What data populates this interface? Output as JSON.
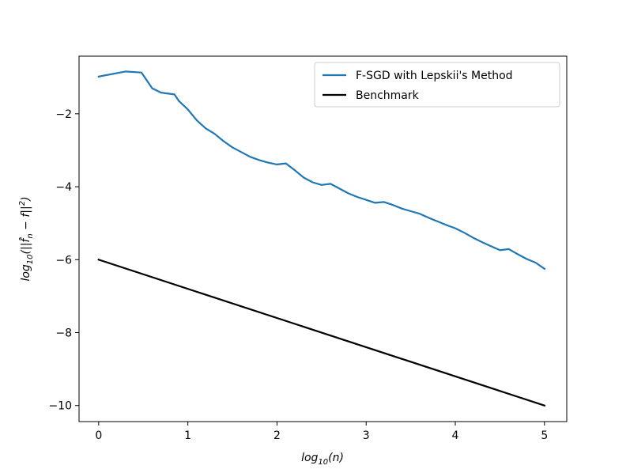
{
  "chart_data": {
    "type": "line",
    "xlabel_base": "log",
    "xlabel_sub": "10",
    "xlabel_arg": "(n)",
    "ylabel_base": "log",
    "ylabel_sub": "10",
    "ylabel_arg": "(||f̂",
    "ylabel_sub2": "n",
    "ylabel_rest": " − f||",
    "ylabel_sup": "2",
    "ylabel_end": ")",
    "xlim": [
      -0.22,
      5.25
    ],
    "ylim": [
      -10.44,
      -0.42
    ],
    "x_ticks": [
      0,
      1,
      2,
      3,
      4,
      5
    ],
    "x_tick_labels": [
      "0",
      "1",
      "2",
      "3",
      "4",
      "5"
    ],
    "y_ticks": [
      -10,
      -8,
      -6,
      -4,
      -2
    ],
    "y_tick_labels": [
      "−10",
      "−8",
      "−6",
      "−4",
      "−2"
    ],
    "grid": false,
    "legend_position": "top-right",
    "series": [
      {
        "name": "F-SGD with Lepskii's Method",
        "color": "#1f77b4",
        "x": [
          0,
          0.3,
          0.48,
          0.6,
          0.7,
          0.85,
          0.9,
          1.0,
          1.1,
          1.2,
          1.3,
          1.4,
          1.5,
          1.6,
          1.7,
          1.8,
          1.9,
          2.0,
          2.1,
          2.2,
          2.3,
          2.4,
          2.5,
          2.6,
          2.7,
          2.8,
          2.9,
          3.0,
          3.1,
          3.2,
          3.3,
          3.4,
          3.5,
          3.6,
          3.7,
          3.8,
          3.9,
          4.0,
          4.1,
          4.2,
          4.3,
          4.4,
          4.5,
          4.6,
          4.7,
          4.8,
          4.9,
          5.0
        ],
        "y": [
          -0.98,
          -0.84,
          -0.87,
          -1.3,
          -1.42,
          -1.47,
          -1.65,
          -1.88,
          -2.18,
          -2.4,
          -2.55,
          -2.75,
          -2.92,
          -3.05,
          -3.18,
          -3.27,
          -3.34,
          -3.39,
          -3.36,
          -3.55,
          -3.75,
          -3.88,
          -3.95,
          -3.92,
          -4.05,
          -4.18,
          -4.28,
          -4.36,
          -4.44,
          -4.42,
          -4.5,
          -4.6,
          -4.67,
          -4.74,
          -4.85,
          -4.95,
          -5.05,
          -5.14,
          -5.26,
          -5.4,
          -5.52,
          -5.63,
          -5.74,
          -5.71,
          -5.85,
          -5.98,
          -6.08,
          -6.25
        ]
      },
      {
        "name": "Benchmark",
        "color": "#000000",
        "x": [
          0,
          5
        ],
        "y": [
          -6,
          -10
        ]
      }
    ]
  }
}
